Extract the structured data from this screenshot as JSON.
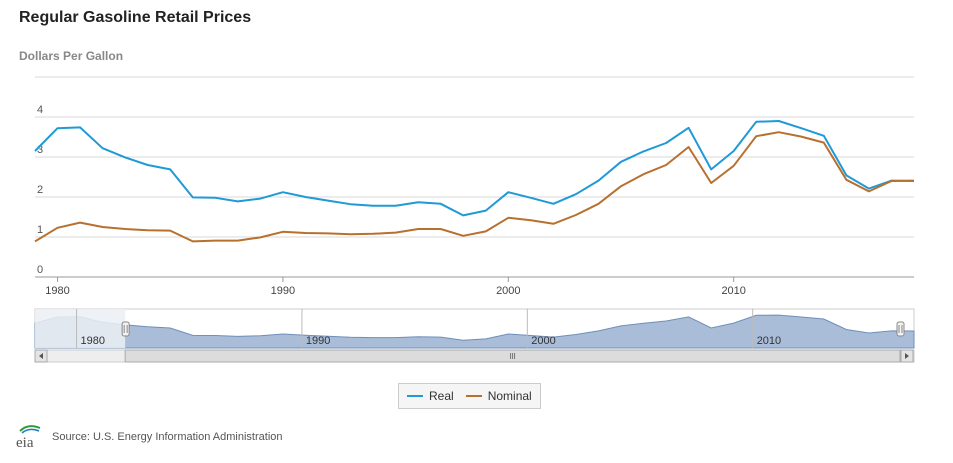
{
  "chart_data": {
    "type": "line",
    "title": "Regular Gasoline Retail Prices",
    "ylabel": "Dollars Per Gallon",
    "x": [
      1979,
      1980,
      1981,
      1982,
      1983,
      1984,
      1985,
      1986,
      1987,
      1988,
      1989,
      1990,
      1991,
      1992,
      1993,
      1994,
      1995,
      1996,
      1997,
      1998,
      1999,
      2000,
      2001,
      2002,
      2003,
      2004,
      2005,
      2006,
      2007,
      2008,
      2009,
      2010,
      2011,
      2012,
      2013,
      2014,
      2015,
      2016,
      2017,
      2018
    ],
    "series": [
      {
        "name": "Real",
        "color": "#1f9ad6",
        "values": [
          3.15,
          3.72,
          3.74,
          3.22,
          2.99,
          2.8,
          2.69,
          1.99,
          1.98,
          1.89,
          1.96,
          2.12,
          2.0,
          1.91,
          1.82,
          1.78,
          1.78,
          1.87,
          1.83,
          1.54,
          1.66,
          2.12,
          1.98,
          1.83,
          2.07,
          2.41,
          2.88,
          3.14,
          3.35,
          3.73,
          2.69,
          3.15,
          3.88,
          3.9,
          3.72,
          3.53,
          2.54,
          2.21,
          2.41,
          2.4
        ]
      },
      {
        "name": "Nominal",
        "color": "#b8702f",
        "values": [
          0.89,
          1.23,
          1.36,
          1.25,
          1.2,
          1.17,
          1.16,
          0.89,
          0.91,
          0.91,
          0.99,
          1.13,
          1.1,
          1.09,
          1.07,
          1.08,
          1.11,
          1.2,
          1.2,
          1.03,
          1.14,
          1.48,
          1.42,
          1.33,
          1.55,
          1.83,
          2.27,
          2.57,
          2.8,
          3.25,
          2.35,
          2.78,
          3.52,
          3.62,
          3.51,
          3.36,
          2.43,
          2.14,
          2.4,
          2.41
        ]
      }
    ],
    "ylim": [
      0,
      5
    ],
    "yticks": [
      0,
      1,
      2,
      3,
      4
    ],
    "xlim": [
      1979,
      2018
    ],
    "xticks": [
      1980,
      1990,
      2000,
      2010
    ],
    "navigator_ticks": [
      1980,
      1990,
      2000,
      2010
    ],
    "navigator_range": [
      1983,
      2018
    ],
    "grid": true,
    "legend_placement": "bottom-center"
  },
  "legend": [
    {
      "label": "Real",
      "color": "#1f9ad6"
    },
    {
      "label": "Nominal",
      "color": "#b8702f"
    }
  ],
  "footer": {
    "logo_text": "eia",
    "source": "Source: U.S. Energy Information Administration"
  }
}
